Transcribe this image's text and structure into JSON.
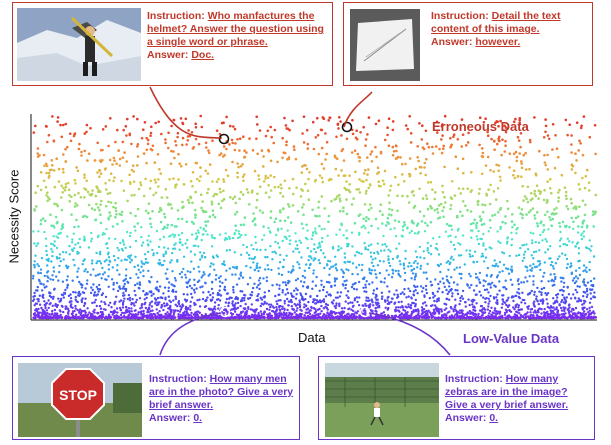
{
  "chart_data": {
    "type": "scatter",
    "xlabel": "Data",
    "ylabel": "Necessity Score",
    "x_ticks": "none",
    "y_ticks": "none",
    "colormap": [
      "#7b2cf0",
      "#3b57f0",
      "#2fb6e8",
      "#4be8c8",
      "#8be07a",
      "#d6c94a",
      "#f08a3a",
      "#e23b2a"
    ],
    "series_description_note": "",
    "annotations": [
      {
        "label": "Erroneous Data",
        "color": "#c0392b"
      },
      {
        "label": "Low-Value Data",
        "color": "#6a35c7"
      }
    ]
  },
  "examples": [
    {
      "id": "top-left",
      "group": "erroneous",
      "instruction_prefix": "Instruction: ",
      "instruction": "Who manfactures the helmet? Answer the question using a single word or phrase.",
      "answer_prefix": "Answer: ",
      "answer": "Doc."
    },
    {
      "id": "top-right",
      "group": "erroneous",
      "instruction_prefix": "Instruction: ",
      "instruction": "Detail the text content of this image.",
      "answer_prefix": "Answer: ",
      "answer": "however."
    },
    {
      "id": "bottom-left",
      "group": "low-value",
      "instruction_prefix": "Instruction: ",
      "instruction": "How many men are in the photo? Give a very brief answer.",
      "answer_prefix": "Answer: ",
      "answer": "0."
    },
    {
      "id": "bottom-right",
      "group": "low-value",
      "instruction_prefix": "Instruction: ",
      "instruction": "How many zebras are in the image? Give a very brief answer.",
      "answer_prefix": "Answer: ",
      "answer": "0."
    }
  ],
  "stop_sign_text": "STOP",
  "colors": {
    "erroneous": "#c0392b",
    "low_value": "#6a35c7"
  }
}
